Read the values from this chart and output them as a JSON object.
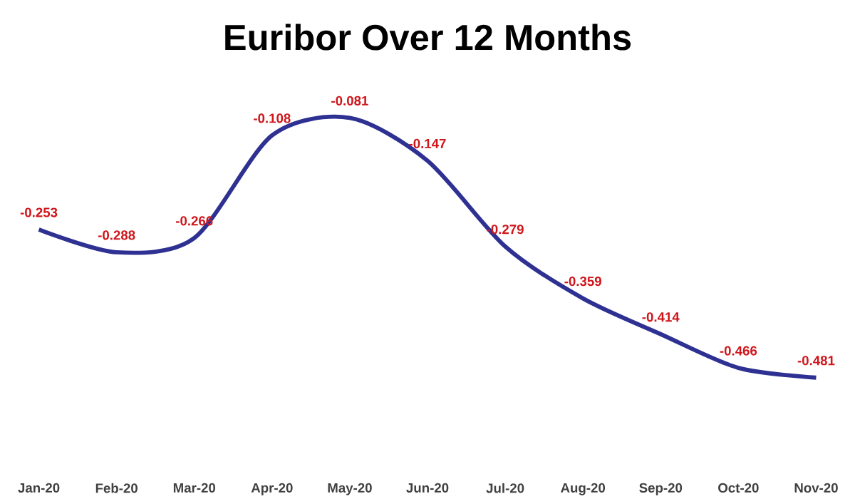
{
  "chart_data": {
    "type": "line",
    "title": "Euribor Over 12 Months",
    "categories": [
      "Jan-20",
      "Feb-20",
      "Mar-20",
      "Apr-20",
      "May-20",
      "Jun-20",
      "Jul-20",
      "Aug-20",
      "Sep-20",
      "Oct-20",
      "Nov-20"
    ],
    "series": [
      {
        "color": "#2e3192",
        "values": [
          -0.253,
          -0.288,
          -0.266,
          -0.108,
          -0.081,
          -0.147,
          -0.279,
          -0.359,
          -0.414,
          -0.466,
          -0.481
        ]
      }
    ],
    "data_labels": true,
    "marker": "none",
    "line_style": "solid"
  }
}
